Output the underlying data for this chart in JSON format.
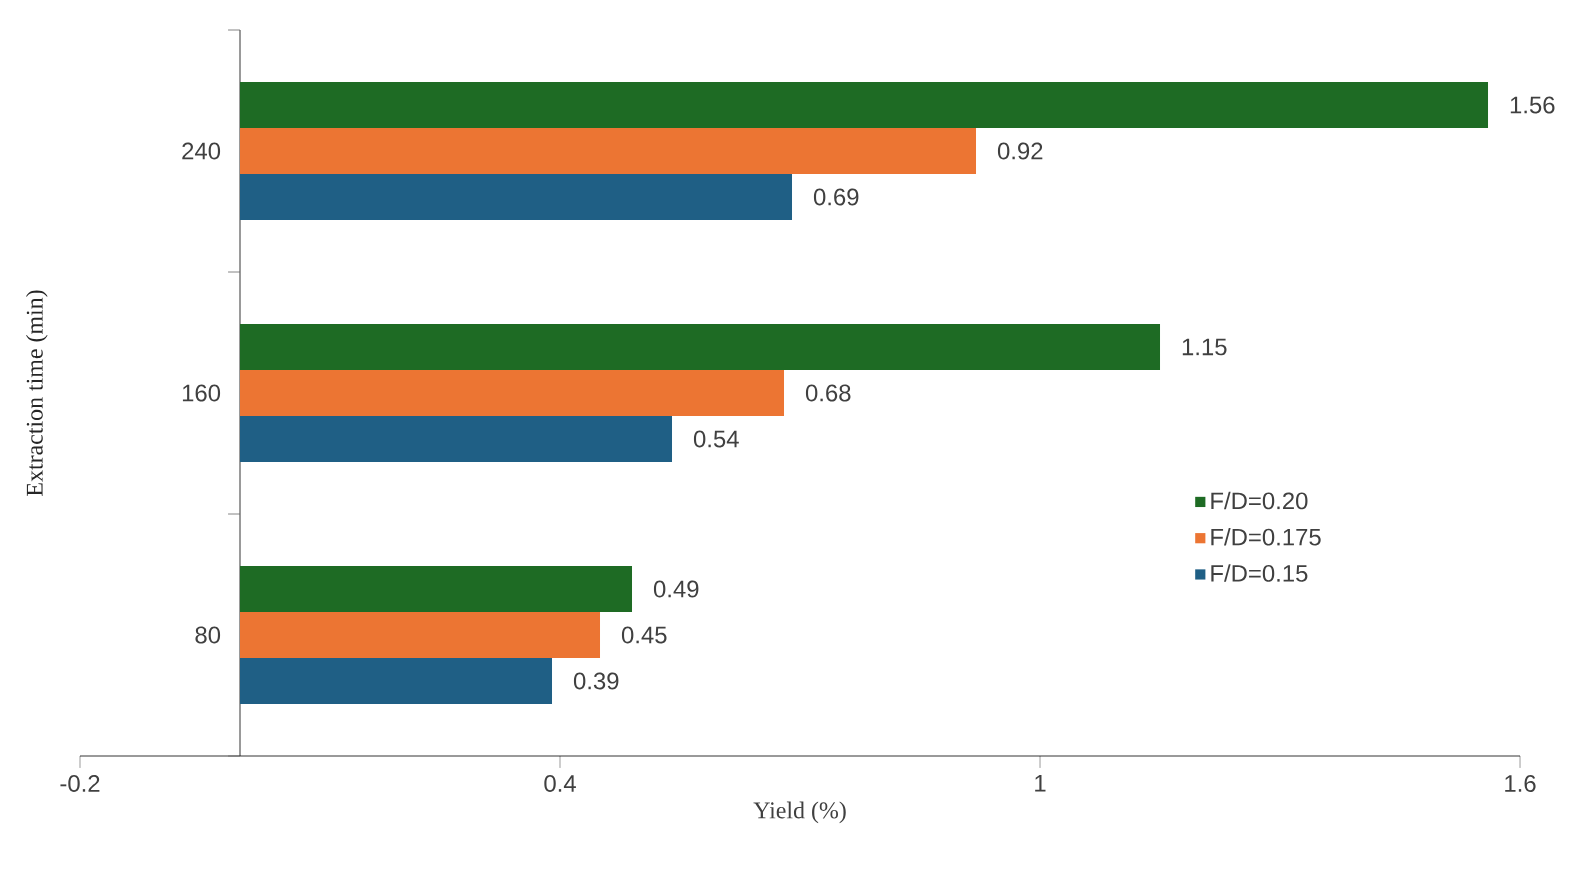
{
  "chart_data": {
    "type": "bar",
    "orientation": "horizontal",
    "xlabel": "Yield (%)",
    "ylabel": "Extraction time (min)",
    "categories": [
      "240",
      "160",
      "80"
    ],
    "series": [
      {
        "name": "F/D=0.20",
        "color": "#1e6b24",
        "values": [
          1.56,
          1.15,
          0.49
        ]
      },
      {
        "name": "F/D=0.175",
        "color": "#ec7533",
        "values": [
          0.92,
          0.68,
          0.45
        ]
      },
      {
        "name": "F/D=0.15",
        "color": "#1f5f85",
        "values": [
          0.69,
          0.54,
          0.39
        ]
      }
    ],
    "xlim": [
      -0.2,
      1.6
    ],
    "xticks": [
      -0.2,
      0.4,
      1,
      1.6
    ],
    "data_labels": true,
    "legend": "right"
  }
}
